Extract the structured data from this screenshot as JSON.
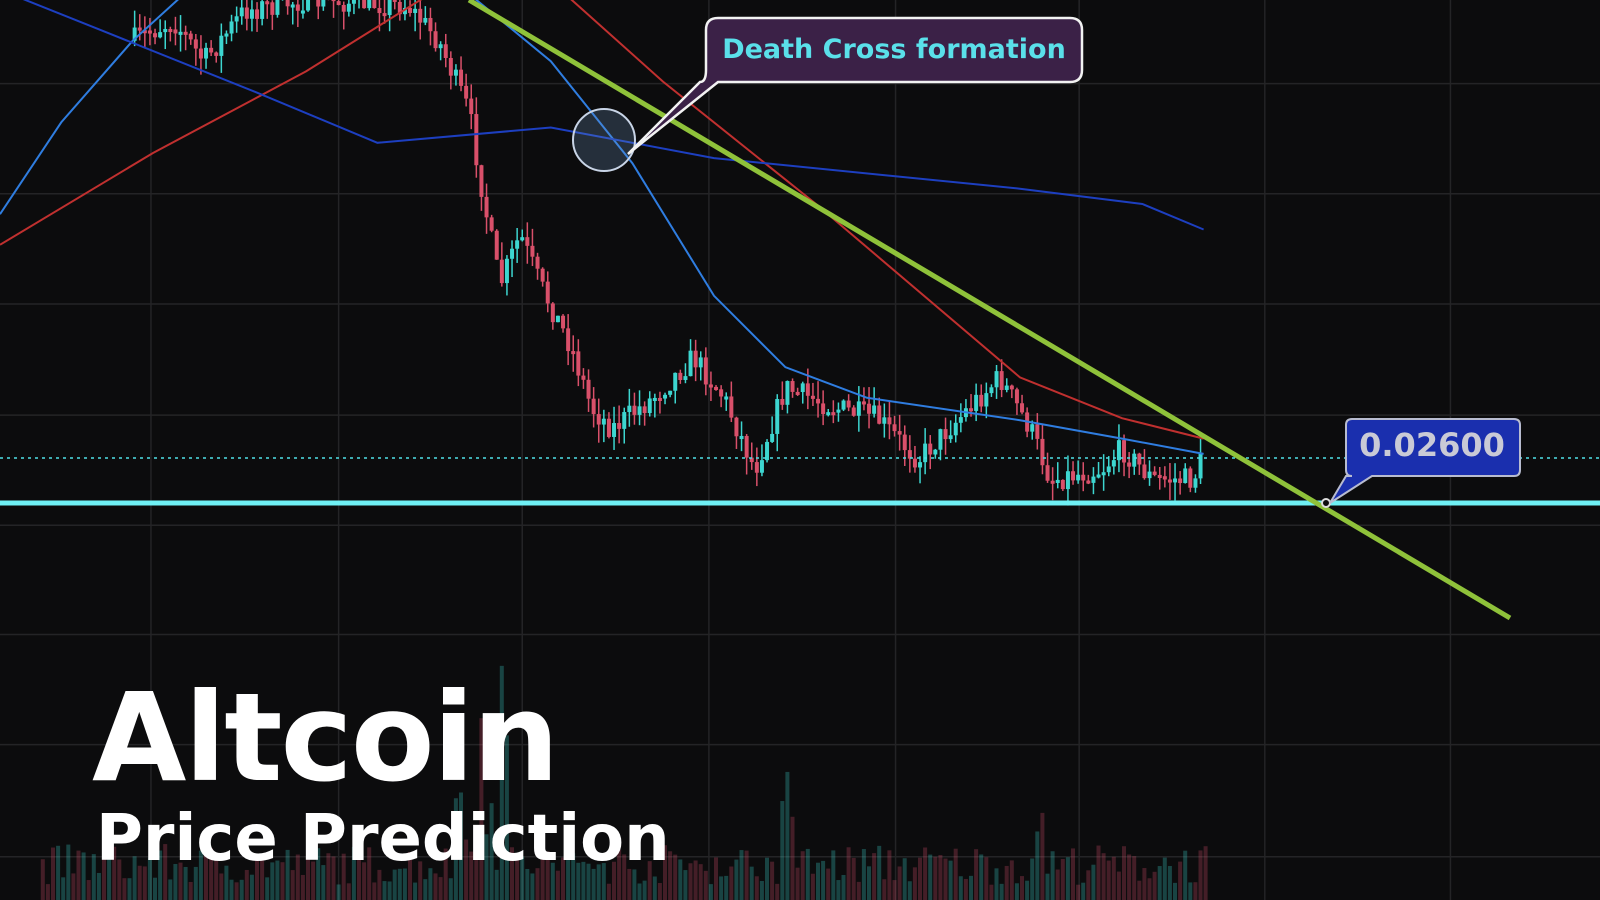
{
  "annotation": "Death Cross formation",
  "price_label": "0.02600",
  "title": "Altcoin",
  "subtitle": "Price Prediction"
}
